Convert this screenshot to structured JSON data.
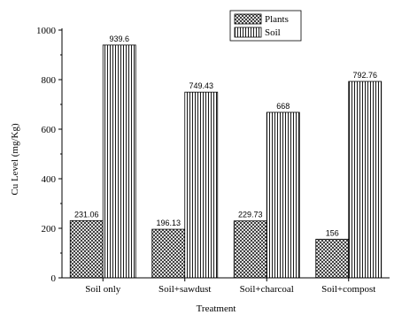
{
  "chart_data": {
    "type": "bar",
    "categories": [
      "Soil only",
      "Soil+sawdust",
      "Soil+charcoal",
      "Soil+compost"
    ],
    "series": [
      {
        "name": "Plants",
        "values": [
          231.06,
          196.13,
          229.73,
          156
        ],
        "labels": [
          "231.06",
          "196.13",
          "229.73",
          "156"
        ],
        "pattern": "crosshatch"
      },
      {
        "name": "Soil",
        "values": [
          939.6,
          749.43,
          668,
          792.76
        ],
        "labels": [
          "939.6",
          "749.43",
          "668",
          "792.76"
        ],
        "pattern": "vertical-lines"
      }
    ],
    "xlabel": "Treatment",
    "ylabel": "Cu Level (mg/Kg)",
    "ylim": [
      0,
      1000
    ],
    "yticks": [
      0,
      200,
      400,
      600,
      800,
      1000
    ],
    "grid": false,
    "legend_position": "top-right"
  }
}
